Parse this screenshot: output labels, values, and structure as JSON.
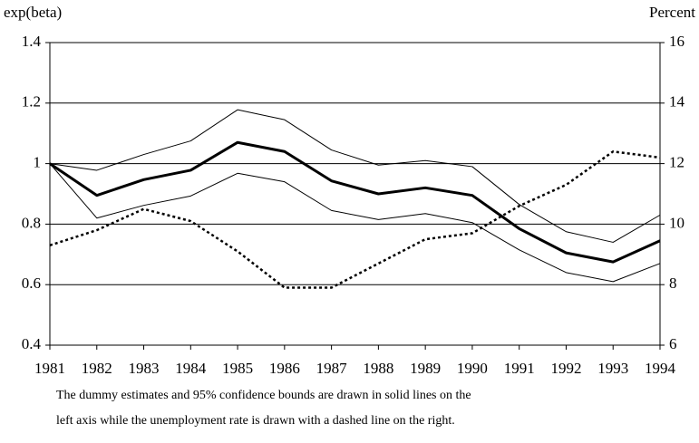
{
  "chart_data": {
    "type": "line",
    "y_label": "exp(beta)",
    "y2_label": "Percent",
    "x": [
      1981,
      1982,
      1983,
      1984,
      1985,
      1986,
      1987,
      1988,
      1989,
      1990,
      1991,
      1992,
      1993,
      1994
    ],
    "xlim": [
      1981,
      1994
    ],
    "xticks": [
      1981,
      1982,
      1983,
      1984,
      1985,
      1986,
      1987,
      1988,
      1989,
      1990,
      1991,
      1992,
      1993,
      1994
    ],
    "ylim": [
      0.4,
      1.4
    ],
    "yticks": [
      0.4,
      0.6,
      0.8,
      1.0,
      1.2,
      1.4
    ],
    "y2lim": [
      6,
      16
    ],
    "y2ticks": [
      6,
      8,
      10,
      12,
      14,
      16
    ],
    "grid": true,
    "series": [
      {
        "color": "#000000",
        "width": 3,
        "values": [
          1.0,
          0.895,
          0.947,
          0.978,
          1.07,
          1.04,
          0.943,
          0.9,
          0.92,
          0.895,
          0.785,
          0.705,
          0.675,
          0.745
        ]
      },
      {
        "color": "#000000",
        "width": 1,
        "values": [
          1.0,
          0.978,
          1.03,
          1.075,
          1.178,
          1.145,
          1.045,
          0.995,
          1.01,
          0.99,
          0.865,
          0.775,
          0.74,
          0.83
        ]
      },
      {
        "color": "#000000",
        "width": 1,
        "values": [
          1.0,
          0.82,
          0.862,
          0.893,
          0.968,
          0.94,
          0.845,
          0.815,
          0.835,
          0.805,
          0.715,
          0.64,
          0.61,
          0.67
        ]
      },
      {
        "color": "#000000",
        "width": 2.5,
        "dashed": true,
        "axis": "y2",
        "values": [
          9.3,
          9.8,
          10.5,
          10.1,
          9.1,
          7.9,
          7.9,
          8.7,
          9.5,
          9.7,
          10.6,
          11.3,
          12.4,
          12.2
        ]
      }
    ],
    "caption": [
      "The dummy estimates and 95% confidence bounds are drawn in solid lines on the",
      "left axis while the unemployment rate is drawn with  a dashed line on the right."
    ]
  }
}
